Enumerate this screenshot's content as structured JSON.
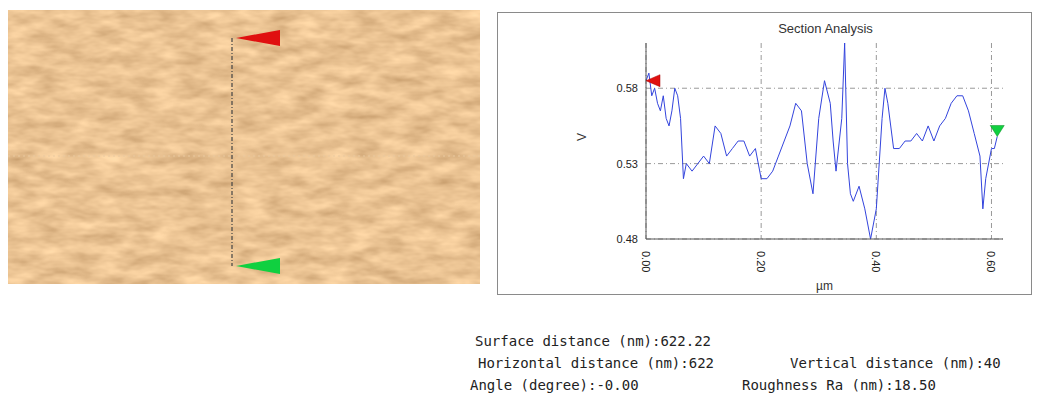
{
  "chart_data": {
    "type": "line",
    "title": "Section Analysis",
    "x_label": "µm",
    "y_label": "V",
    "x": [
      0.0,
      0.005,
      0.01,
      0.015,
      0.02,
      0.025,
      0.03,
      0.035,
      0.04,
      0.045,
      0.05,
      0.055,
      0.06,
      0.065,
      0.07,
      0.08,
      0.09,
      0.1,
      0.11,
      0.12,
      0.13,
      0.14,
      0.15,
      0.16,
      0.17,
      0.18,
      0.19,
      0.2,
      0.21,
      0.22,
      0.23,
      0.24,
      0.25,
      0.26,
      0.27,
      0.28,
      0.29,
      0.3,
      0.31,
      0.32,
      0.325,
      0.33,
      0.34,
      0.345,
      0.35,
      0.355,
      0.36,
      0.37,
      0.38,
      0.39,
      0.4,
      0.41,
      0.415,
      0.42,
      0.43,
      0.44,
      0.45,
      0.46,
      0.47,
      0.48,
      0.49,
      0.5,
      0.51,
      0.52,
      0.53,
      0.54,
      0.55,
      0.56,
      0.57,
      0.58,
      0.585,
      0.59,
      0.6,
      0.605,
      0.61
    ],
    "values": [
      0.585,
      0.59,
      0.575,
      0.58,
      0.57,
      0.565,
      0.575,
      0.56,
      0.555,
      0.565,
      0.58,
      0.575,
      0.56,
      0.52,
      0.53,
      0.525,
      0.53,
      0.535,
      0.53,
      0.555,
      0.55,
      0.535,
      0.54,
      0.545,
      0.545,
      0.535,
      0.54,
      0.52,
      0.52,
      0.525,
      0.535,
      0.545,
      0.555,
      0.57,
      0.565,
      0.53,
      0.51,
      0.56,
      0.585,
      0.57,
      0.545,
      0.525,
      0.56,
      0.61,
      0.53,
      0.51,
      0.505,
      0.515,
      0.5,
      0.48,
      0.5,
      0.56,
      0.58,
      0.57,
      0.54,
      0.54,
      0.545,
      0.545,
      0.55,
      0.545,
      0.555,
      0.545,
      0.555,
      0.56,
      0.57,
      0.575,
      0.575,
      0.565,
      0.55,
      0.535,
      0.5,
      0.52,
      0.54,
      0.54,
      0.548
    ],
    "color": "#3344dd",
    "xlim": [
      0,
      0.62
    ],
    "xticks": [
      {
        "value": 0,
        "label": "0.00"
      },
      {
        "value": 0.2,
        "label": "0.20"
      },
      {
        "value": 0.4,
        "label": "0.40"
      },
      {
        "value": 0.6,
        "label": "0.60"
      }
    ],
    "ylim": [
      0.48,
      0.61
    ],
    "yticks": [
      0.48,
      0.53,
      0.58
    ],
    "grid": true,
    "readouts": [
      [
        "Surface distance (nm):622.22"
      ],
      [
        "Horizontal distance (nm):622",
        "Vertical distance (nm):40"
      ],
      [
        "Angle (degree):-0.00",
        "Roughness Ra (nm):18.50"
      ]
    ]
  }
}
